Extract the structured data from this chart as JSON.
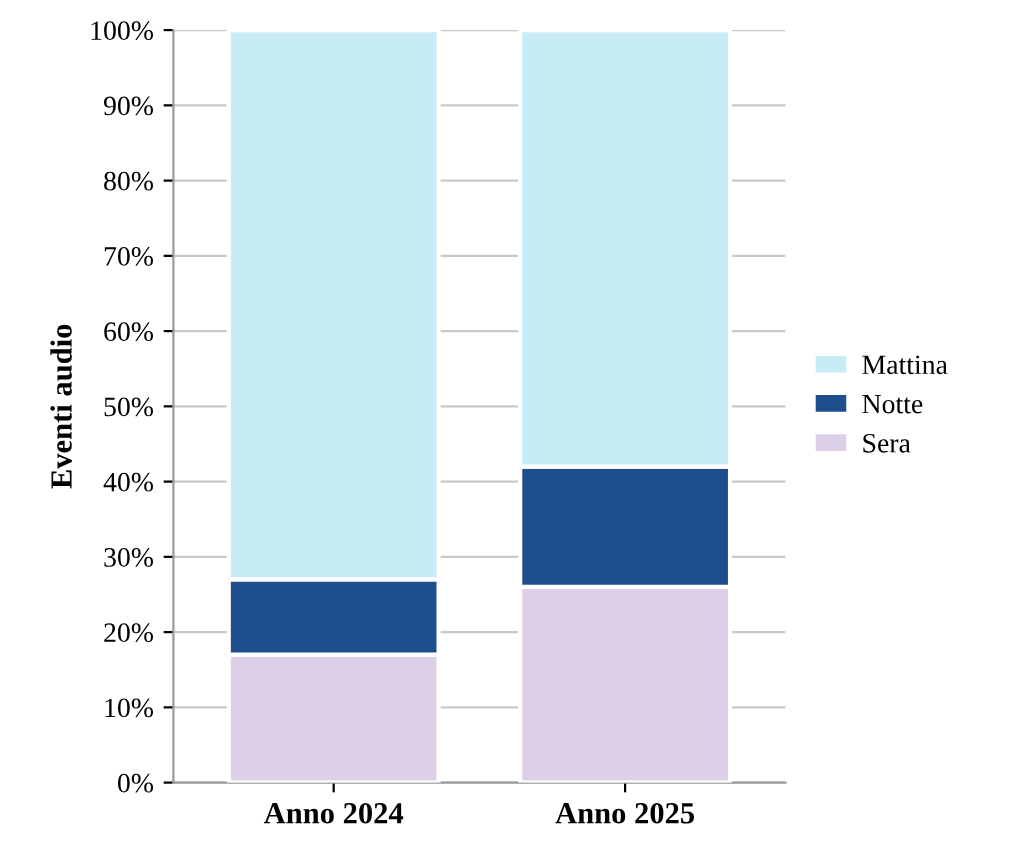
{
  "chart_data": {
    "type": "bar",
    "stacked": true,
    "ylabel": "Eventi audio",
    "categories": [
      "Anno 2024",
      "Anno 2025"
    ],
    "series": [
      {
        "name": "Sera",
        "color": "#dcd0e8",
        "values": [
          17,
          26
        ]
      },
      {
        "name": "Notte",
        "color": "#1f4e8c",
        "values": [
          10,
          16
        ]
      },
      {
        "name": "Mattina",
        "color": "#c8ecf6",
        "values": [
          73,
          58
        ]
      }
    ],
    "ylim": [
      0,
      100
    ],
    "yticks": [
      {
        "value": 0,
        "label": "0%"
      },
      {
        "value": 10,
        "label": "10%"
      },
      {
        "value": 20,
        "label": "20%"
      },
      {
        "value": 30,
        "label": "30%"
      },
      {
        "value": 40,
        "label": "40%"
      },
      {
        "value": 50,
        "label": "50%"
      },
      {
        "value": 60,
        "label": "60%"
      },
      {
        "value": 70,
        "label": "70%"
      },
      {
        "value": 80,
        "label": "80%"
      },
      {
        "value": 90,
        "label": "90%"
      },
      {
        "value": 100,
        "label": "100%"
      }
    ],
    "grid": "y",
    "legend": "right"
  }
}
